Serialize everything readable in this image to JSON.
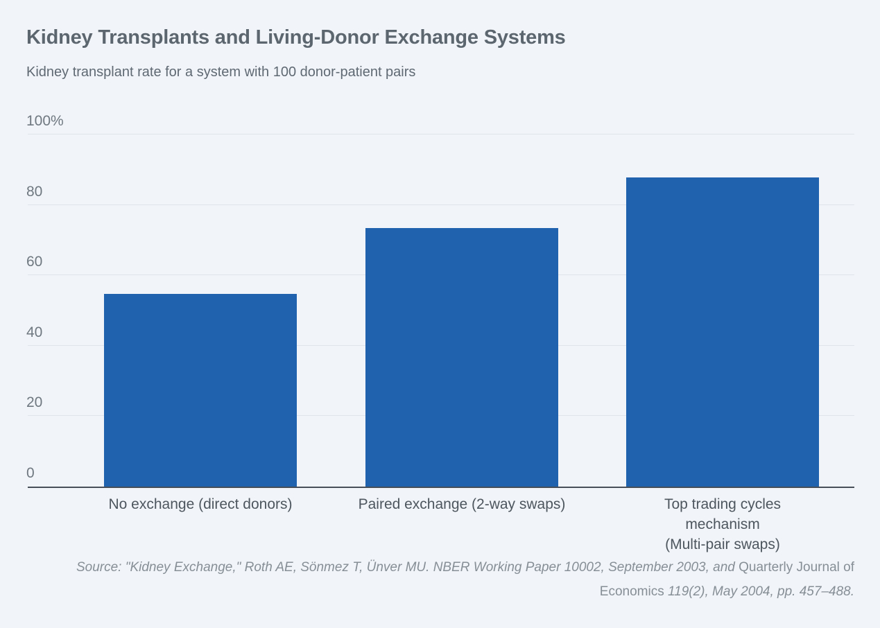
{
  "chart_data": {
    "type": "bar",
    "title": "Kidney Transplants and Living-Donor Exchange Systems",
    "subtitle": "Kidney transplant rate for a system with 100 donor-patient pairs",
    "categories": [
      "No exchange (direct donors)",
      "Paired exchange (2-way swaps)",
      "Top trading cycles mechanism\n(Multi-pair swaps)"
    ],
    "values": [
      54.8,
      73.4,
      87.8
    ],
    "unit": "percent",
    "ylabel": "",
    "xlabel": "",
    "ylim": [
      0,
      100
    ],
    "yticks": [
      0,
      20,
      40,
      60,
      80,
      100
    ],
    "ytick_labels": [
      "0",
      "20",
      "40",
      "60",
      "80",
      "100%"
    ],
    "grid": true,
    "legend": "none",
    "bar_color": "#2162ae"
  },
  "source": {
    "italic_lead": "Source: \"Kidney Exchange,\" Roth AE, Sönmez T, Ünver MU. NBER Working Paper 10002, September 2003, and ",
    "journal": "Quarterly Journal of Economics",
    "italic_tail": " 119(2), May 2004, pp. 457–488."
  },
  "colors": {
    "background": "#f1f4f8",
    "bar": "#2162ae",
    "gridline": "#dfe3ea",
    "axis_line": "#474e57",
    "title_text": "#5c666f",
    "tick_text": "#6f7880",
    "category_text": "#4d565e",
    "source_text": "#868e96"
  }
}
